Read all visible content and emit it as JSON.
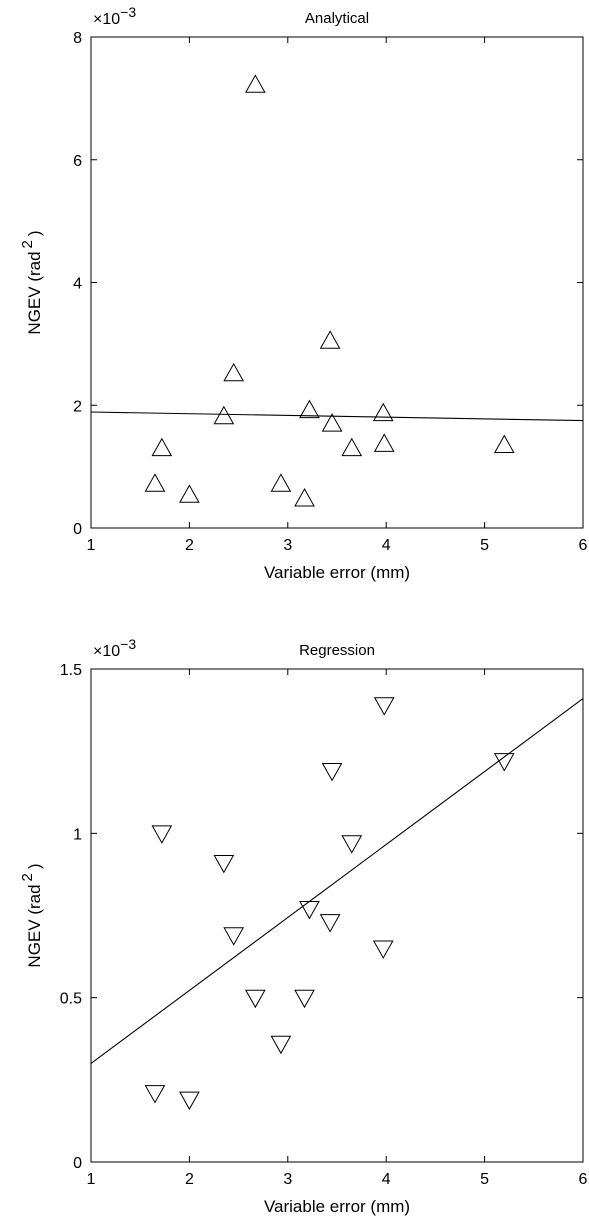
{
  "chart_data": [
    {
      "type": "scatter",
      "title": "Analytical",
      "xlabel": "Variable error (mm)",
      "ylabel": "NGEV (rad",
      "ylabel_sup": "2",
      "ylabel_close": ")",
      "y_multiplier": "×10",
      "y_multiplier_exp": "−3",
      "xlim": [
        1,
        6
      ],
      "ylim": [
        0,
        8
      ],
      "xticks": [
        1,
        2,
        3,
        4,
        5,
        6
      ],
      "yticks": [
        0,
        2,
        4,
        6,
        8
      ],
      "grid": false,
      "marker": "triangle-up",
      "series": [
        {
          "points": [
            {
              "x": 1.65,
              "y": 0.72
            },
            {
              "x": 1.72,
              "y": 1.3
            },
            {
              "x": 2.0,
              "y": 0.54
            },
            {
              "x": 2.35,
              "y": 1.82
            },
            {
              "x": 2.45,
              "y": 2.52
            },
            {
              "x": 2.67,
              "y": 7.22
            },
            {
              "x": 2.93,
              "y": 0.72
            },
            {
              "x": 3.17,
              "y": 0.48
            },
            {
              "x": 3.22,
              "y": 1.92
            },
            {
              "x": 3.43,
              "y": 3.05
            },
            {
              "x": 3.45,
              "y": 1.7
            },
            {
              "x": 3.65,
              "y": 1.3
            },
            {
              "x": 3.97,
              "y": 1.87
            },
            {
              "x": 3.98,
              "y": 1.37
            },
            {
              "x": 5.2,
              "y": 1.35
            }
          ]
        }
      ],
      "fit_line": {
        "x": [
          1,
          6
        ],
        "y": [
          1.89,
          1.75
        ]
      }
    },
    {
      "type": "scatter",
      "title": "Regression",
      "xlabel": "Variable error (mm)",
      "ylabel": "NGEV (rad",
      "ylabel_sup": "2",
      "ylabel_close": ")",
      "y_multiplier": "×10",
      "y_multiplier_exp": "−3",
      "xlim": [
        1,
        6
      ],
      "ylim": [
        0,
        1.5
      ],
      "xticks": [
        1,
        2,
        3,
        4,
        5,
        6
      ],
      "yticks": [
        0,
        0.5,
        1,
        1.5
      ],
      "grid": false,
      "marker": "triangle-down",
      "series": [
        {
          "points": [
            {
              "x": 1.65,
              "y": 0.21
            },
            {
              "x": 1.72,
              "y": 1.0
            },
            {
              "x": 2.0,
              "y": 0.19
            },
            {
              "x": 2.35,
              "y": 0.91
            },
            {
              "x": 2.45,
              "y": 0.69
            },
            {
              "x": 2.67,
              "y": 0.5
            },
            {
              "x": 2.93,
              "y": 0.36
            },
            {
              "x": 3.17,
              "y": 0.5
            },
            {
              "x": 3.22,
              "y": 0.77
            },
            {
              "x": 3.43,
              "y": 0.73
            },
            {
              "x": 3.45,
              "y": 1.19
            },
            {
              "x": 3.65,
              "y": 0.97
            },
            {
              "x": 3.97,
              "y": 0.65
            },
            {
              "x": 3.98,
              "y": 1.39
            },
            {
              "x": 5.2,
              "y": 1.22
            }
          ]
        }
      ],
      "fit_line": {
        "x": [
          1,
          6
        ],
        "y": [
          0.3,
          1.41
        ]
      }
    }
  ]
}
